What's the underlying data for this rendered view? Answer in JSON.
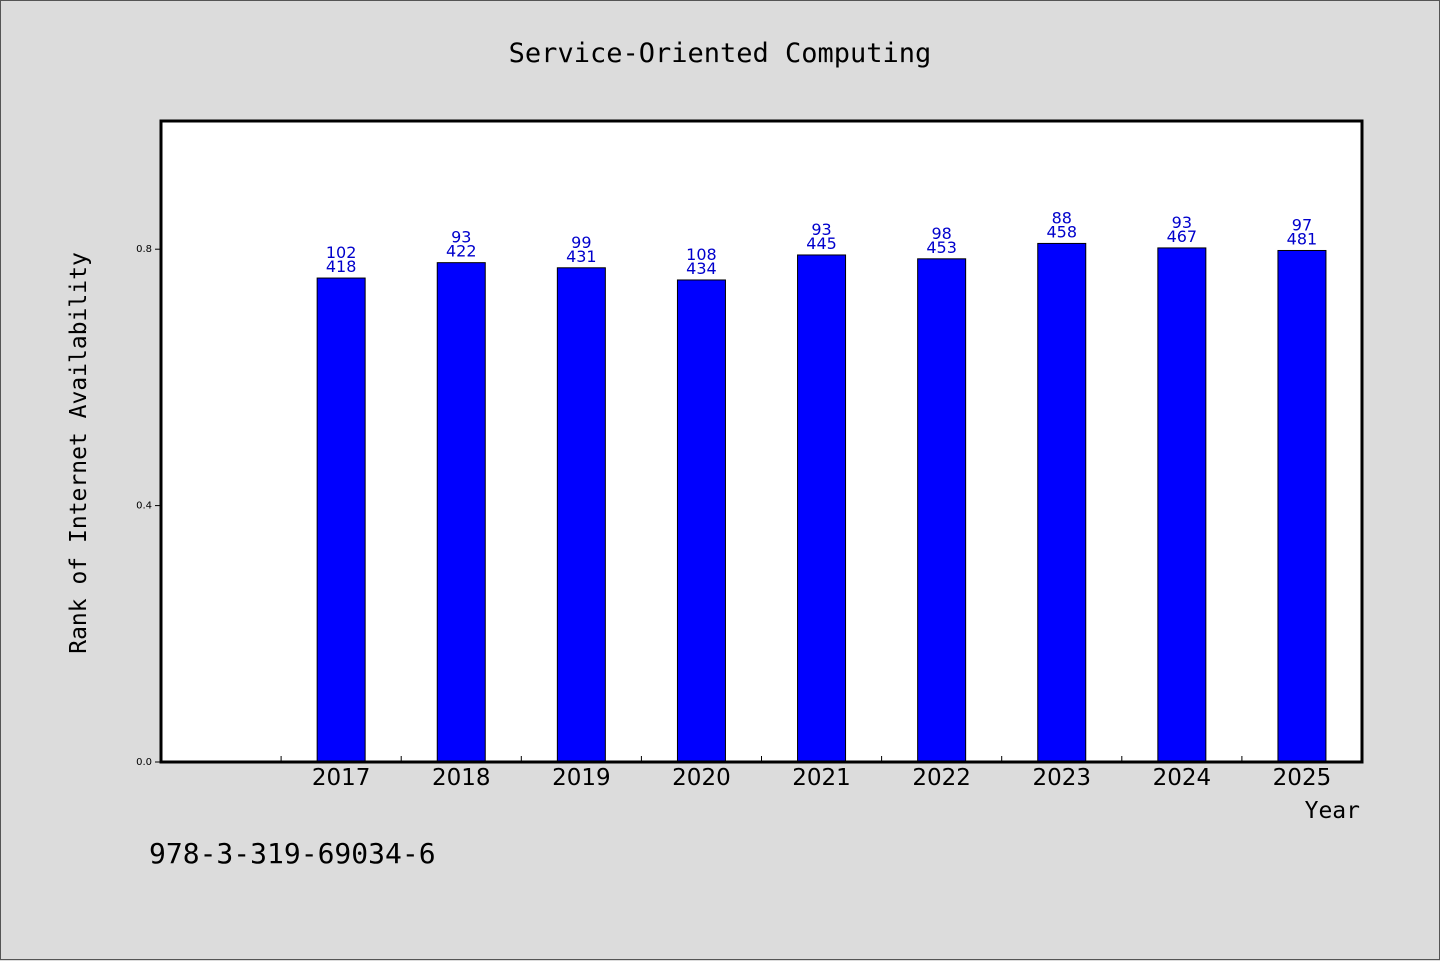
{
  "chart_data": {
    "type": "bar",
    "title": "Service-Oriented Computing",
    "xlabel": "Year",
    "ylabel": "Rank of Internet Availability",
    "categories": [
      "2017",
      "2018",
      "2019",
      "2020",
      "2021",
      "2022",
      "2023",
      "2024",
      "2025"
    ],
    "values": [
      0.755,
      0.779,
      0.771,
      0.752,
      0.791,
      0.785,
      0.809,
      0.802,
      0.798
    ],
    "labels_top": [
      "102",
      "93",
      "99",
      "108",
      "93",
      "98",
      "88",
      "93",
      "97"
    ],
    "labels_bottom": [
      "418",
      "422",
      "431",
      "434",
      "445",
      "453",
      "458",
      "467",
      "481"
    ],
    "yticks": [
      "0.0",
      "0.4",
      "0.8"
    ],
    "ytick_values": [
      0.0,
      0.4,
      0.8
    ],
    "ylim": [
      0,
      1.0
    ],
    "grid": false,
    "bar_color": "#0000ff",
    "label_color": "#0000cc"
  },
  "footer": {
    "isbn": "978-3-319-69034-6"
  }
}
